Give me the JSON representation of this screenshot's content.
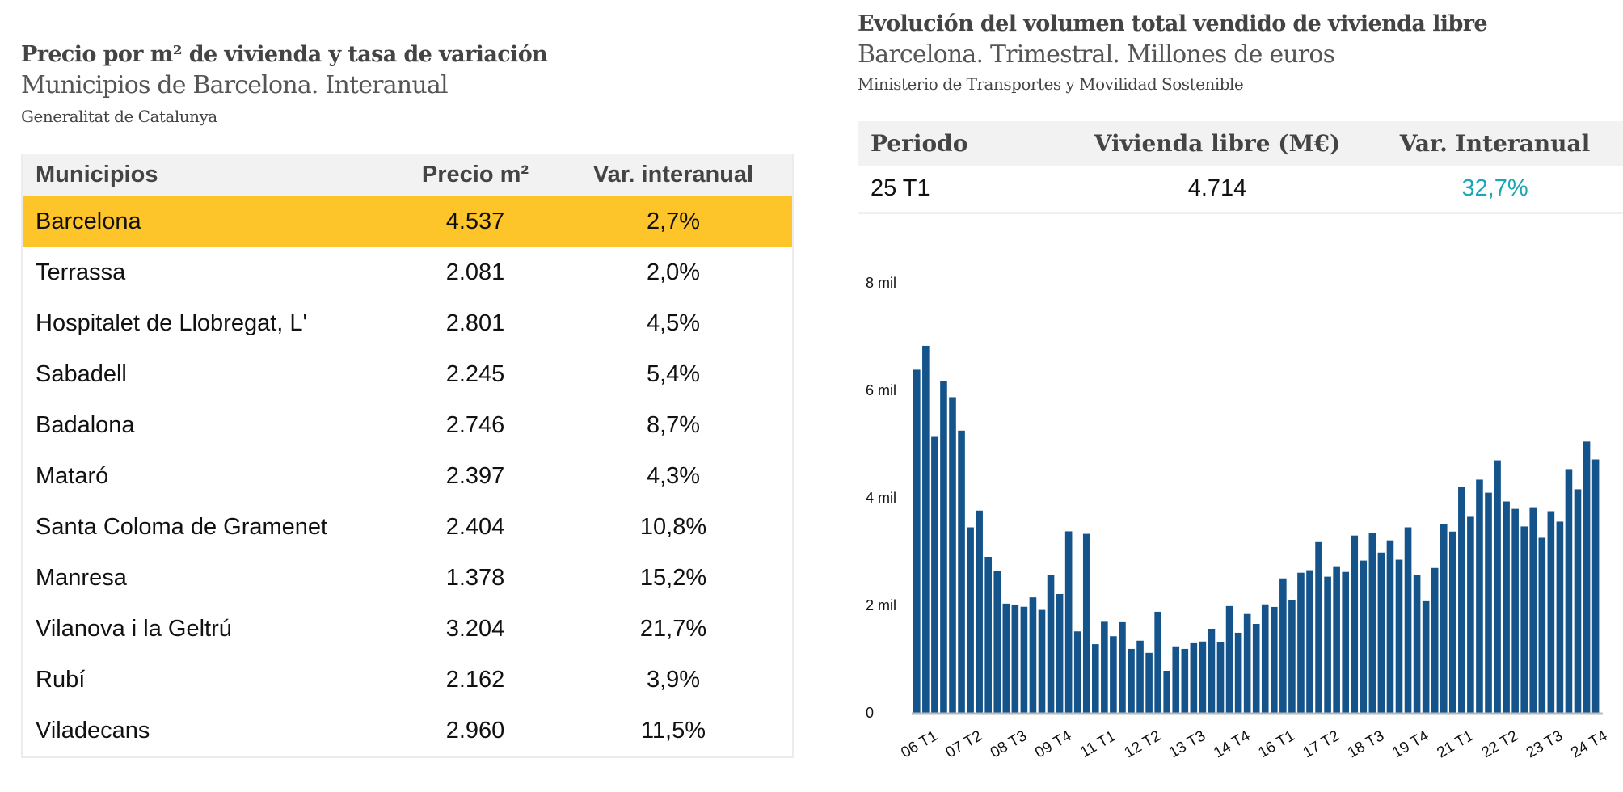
{
  "left": {
    "title": "Precio por m² de vivienda y tasa de variación",
    "subtitle": "Municipios de Barcelona. Interanual",
    "source": "Generalitat de Catalunya",
    "columns": [
      "Municipios",
      "Precio m²",
      "Var. interanual"
    ],
    "highlight_color": "#fec52a",
    "rows": [
      {
        "municipio": "Barcelona",
        "precio": "4.537",
        "var": "2,7%"
      },
      {
        "municipio": "Terrassa",
        "precio": "2.081",
        "var": "2,0%"
      },
      {
        "municipio": "Hospitalet de Llobregat, L'",
        "precio": "2.801",
        "var": "4,5%"
      },
      {
        "municipio": "Sabadell",
        "precio": "2.245",
        "var": "5,4%"
      },
      {
        "municipio": "Badalona",
        "precio": "2.746",
        "var": "8,7%"
      },
      {
        "municipio": "Mataró",
        "precio": "2.397",
        "var": "4,3%"
      },
      {
        "municipio": "Santa Coloma de Gramenet",
        "precio": "2.404",
        "var": "10,8%"
      },
      {
        "municipio": "Manresa",
        "precio": "1.378",
        "var": "15,2%"
      },
      {
        "municipio": "Vilanova i la Geltrú",
        "precio": "3.204",
        "var": "21,7%"
      },
      {
        "municipio": "Rubí",
        "precio": "2.162",
        "var": "3,9%"
      },
      {
        "municipio": "Viladecans",
        "precio": "2.960",
        "var": "11,5%"
      }
    ]
  },
  "right": {
    "title": "Evolución del volumen total vendido de vivienda libre",
    "subtitle": "Barcelona. Trimestral. Millones de euros",
    "source": "Ministerio de Transportes y Movilidad Sostenible",
    "columns": [
      "Periodo",
      "Vivienda libre (M€)",
      "Var. Interanual"
    ],
    "summary": {
      "periodo": "25 T1",
      "valor": "4.714",
      "var": "32,7%"
    },
    "var_color": "#1aa6b7"
  },
  "chart_data": {
    "type": "bar",
    "title": "Evolución del volumen total vendido de vivienda libre",
    "subtitle": "Barcelona. Trimestral. Millones de euros",
    "xlabel": "",
    "ylabel": "",
    "ylim": [
      0,
      8000
    ],
    "yticks": [
      0,
      2000,
      4000,
      6000,
      8000
    ],
    "ytick_labels": [
      "0",
      "2 mil",
      "4 mil",
      "6 mil",
      "8 mil"
    ],
    "grid": false,
    "bar_color": "#14548a",
    "start_year": 6,
    "start_quarter": 1,
    "x_tick_labels": [
      "06 T1",
      "07 T2",
      "08 T3",
      "09 T4",
      "11 T1",
      "12 T2",
      "13 T3",
      "14 T4",
      "16 T1",
      "17 T2",
      "18 T3",
      "19 T4",
      "21 T1",
      "22 T2",
      "23 T3",
      "24 T4"
    ],
    "x_tick_every": 5,
    "values": [
      6385,
      6828,
      5135,
      6169,
      5873,
      5251,
      3451,
      3763,
      2902,
      2639,
      2032,
      2016,
      1974,
      2148,
      1916,
      2565,
      2211,
      3377,
      1515,
      3330,
      1277,
      1694,
      1425,
      1686,
      1189,
      1342,
      1115,
      1881,
      782,
      1237,
      1189,
      1295,
      1327,
      1564,
      1311,
      1987,
      1490,
      1839,
      1654,
      2019,
      1971,
      2500,
      2093,
      2606,
      2653,
      3176,
      2532,
      2727,
      2621,
      3298,
      2833,
      3345,
      2981,
      3208,
      2849,
      3451,
      2558,
      2077,
      2695,
      3509,
      3372,
      4202,
      3647,
      4339,
      4096,
      4698,
      3932,
      3795,
      3467,
      3826,
      3256,
      3752,
      3557,
      4535,
      4159,
      5047,
      4714
    ]
  }
}
